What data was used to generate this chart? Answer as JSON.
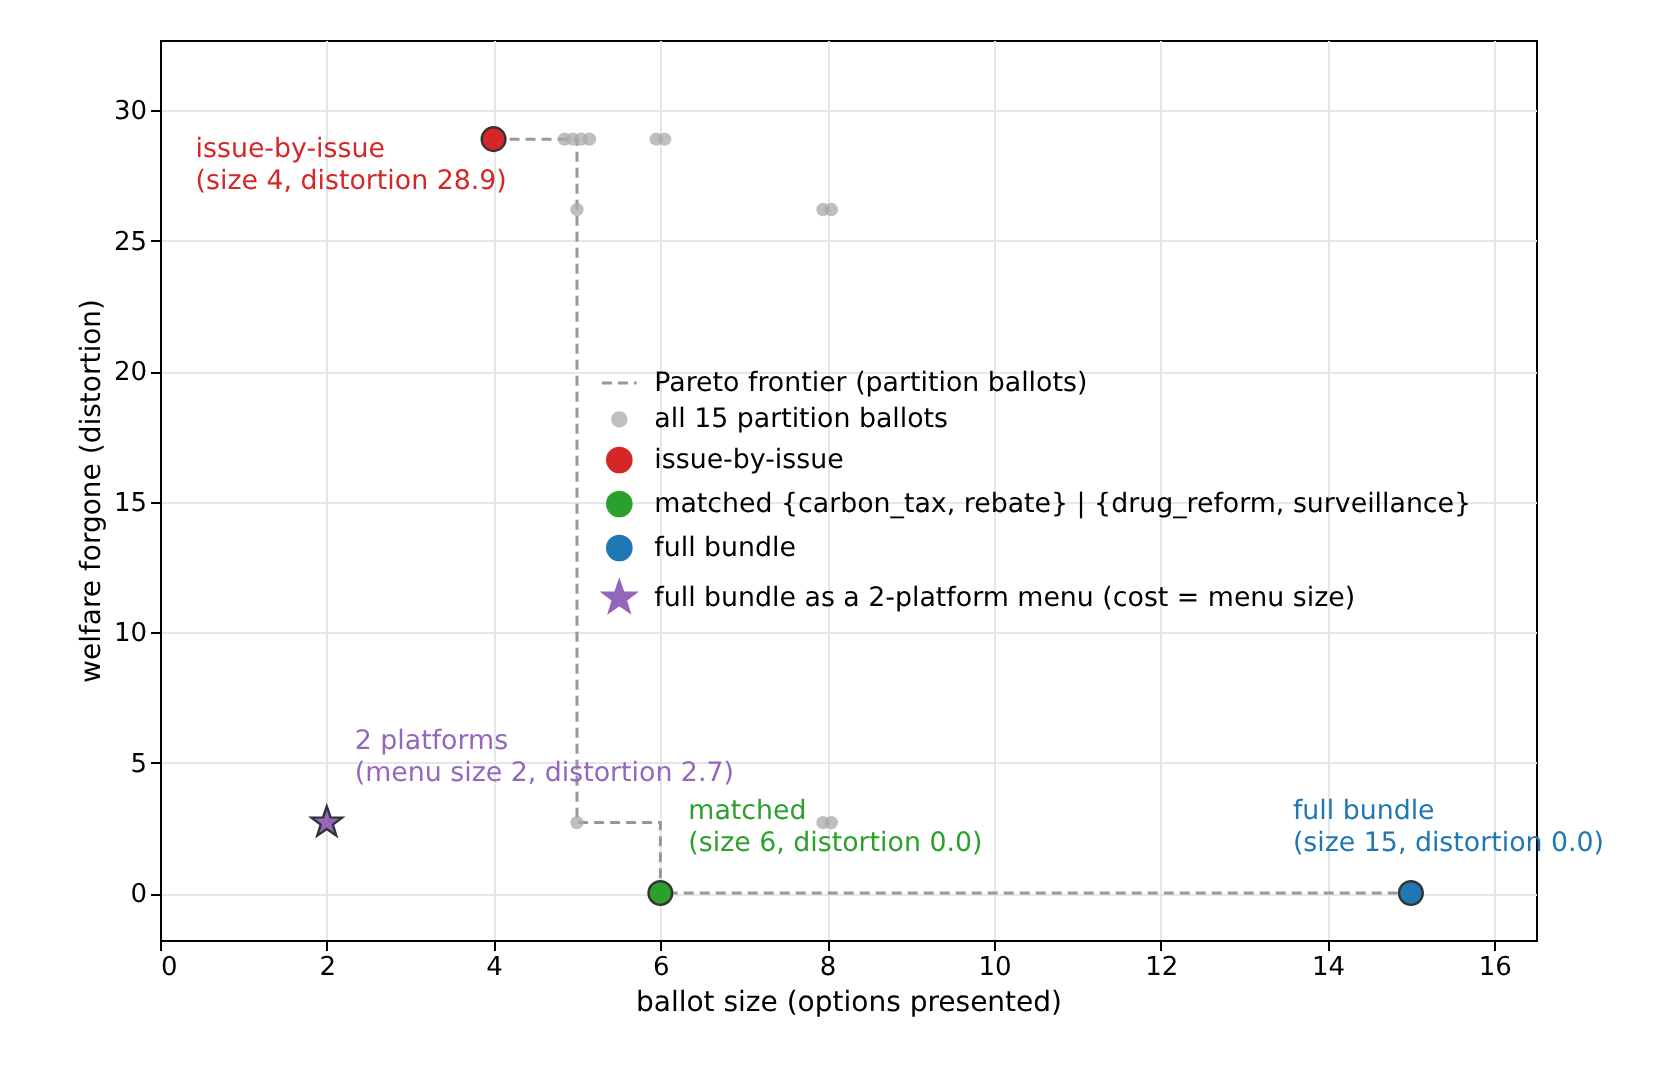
{
  "chart_data": {
    "type": "scatter",
    "xlabel": "ballot size (options presented)",
    "ylabel": "welfare forgone (distortion)",
    "xlim": [
      0,
      16.5
    ],
    "xticks": [
      0,
      2,
      4,
      6,
      8,
      10,
      12,
      14,
      16
    ],
    "ylim": [
      -1.8,
      32.7
    ],
    "yticks": [
      0,
      5,
      10,
      15,
      20,
      25,
      30
    ],
    "grid": true,
    "legend": "right",
    "series": [
      {
        "name": "Pareto frontier (partition ballots)",
        "type": "line",
        "marker": "none",
        "line_style": "dashed",
        "color": "#999999",
        "x": [
          4,
          5,
          5,
          6,
          6,
          15
        ],
        "values": [
          28.9,
          28.9,
          2.7,
          2.7,
          0,
          0
        ]
      },
      {
        "name": "all 15 partition ballots",
        "color": "#aaaaaa",
        "marker": "circle",
        "x": [
          4.85,
          4.95,
          5.05,
          5.15,
          5.95,
          6.05,
          5,
          7.95,
          8.05,
          5,
          7.95,
          8.05
        ],
        "values": [
          28.9,
          28.9,
          28.9,
          28.9,
          28.9,
          28.9,
          26.2,
          26.2,
          26.2,
          2.7,
          2.7,
          2.7
        ]
      },
      {
        "name": "issue-by-issue",
        "color": "#d62728",
        "marker": "circle",
        "x": [
          4
        ],
        "values": [
          28.9
        ]
      },
      {
        "name": "matched {carbon_tax, rebate} | {drug_reform, surveillance}",
        "color": "#2ca02c",
        "marker": "circle",
        "x": [
          6
        ],
        "values": [
          0
        ]
      },
      {
        "name": "full bundle",
        "color": "#1f77b4",
        "marker": "circle",
        "x": [
          15
        ],
        "values": [
          0
        ]
      },
      {
        "name": "full bundle as a 2-platform menu (cost = menu size)",
        "color": "#9467bd",
        "marker": "star",
        "x": [
          2
        ],
        "values": [
          2.7
        ]
      }
    ],
    "annotations": [
      {
        "text": "issue-by-issue\n(size 4, distortion 28.9)",
        "x": 4,
        "y": 28.9
      },
      {
        "text": "2 platforms\n(menu size 2, distortion 2.7)",
        "x": 2,
        "y": 2.7
      },
      {
        "text": "matched\n(size 6, distortion 0.0)",
        "x": 6,
        "y": 0
      },
      {
        "text": "full bundle\n(size 15, distortion 0.0)",
        "x": 15,
        "y": 0
      }
    ]
  }
}
